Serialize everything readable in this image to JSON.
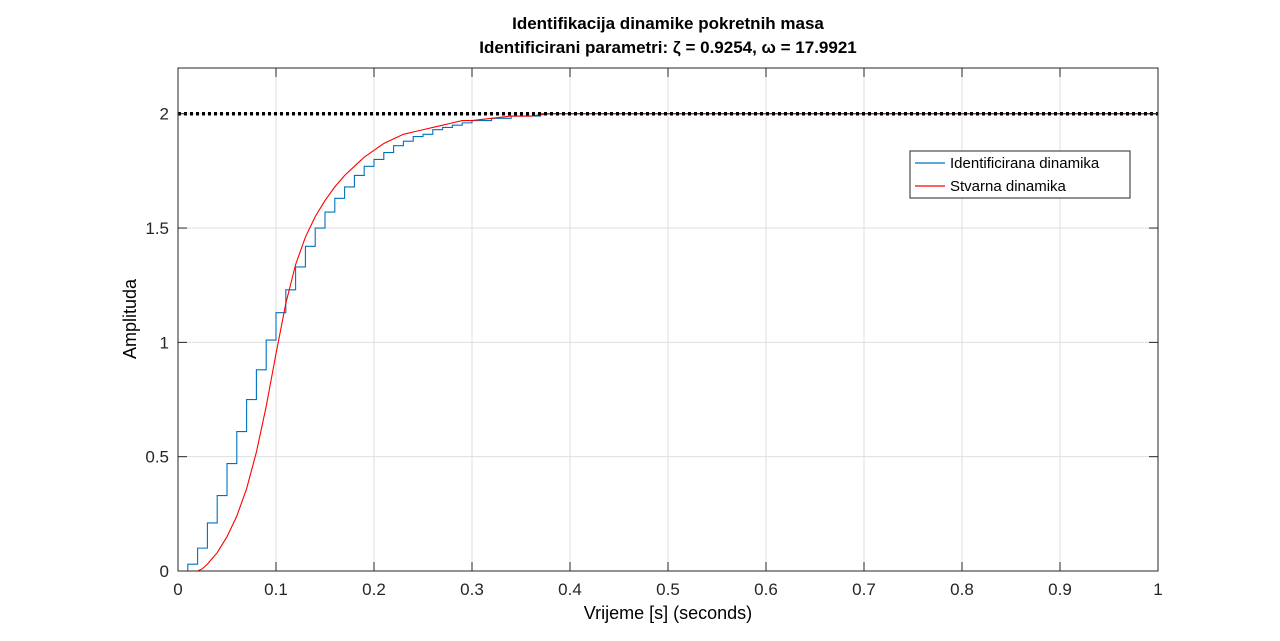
{
  "chart_data": {
    "type": "line",
    "title_line1": "Identifikacija dinamike pokretnih masa",
    "title_line2": "Identificirani parametri: ζ = 0.9254, ω = 17.9921",
    "xlabel": "Vrijeme [s] (seconds)",
    "ylabel": "Amplituda",
    "xlim": [
      0,
      1
    ],
    "ylim": [
      0,
      2.2
    ],
    "xticks": [
      "0",
      "0.1",
      "0.2",
      "0.3",
      "0.4",
      "0.5",
      "0.6",
      "0.7",
      "0.8",
      "0.9",
      "1"
    ],
    "yticks": [
      "0",
      "0.5",
      "1",
      "1.5",
      "2"
    ],
    "grid": true,
    "legend_position": "upper-right",
    "reference_line": {
      "y": 2,
      "style": "dotted",
      "color": "#000000"
    },
    "series": [
      {
        "name": "Identificirana dinamika",
        "style": "step",
        "color": "#0072BD",
        "x": [
          0,
          0.01,
          0.02,
          0.03,
          0.04,
          0.05,
          0.06,
          0.07,
          0.08,
          0.09,
          0.1,
          0.11,
          0.12,
          0.13,
          0.14,
          0.15,
          0.16,
          0.17,
          0.18,
          0.19,
          0.2,
          0.21,
          0.22,
          0.23,
          0.24,
          0.25,
          0.26,
          0.27,
          0.28,
          0.29,
          0.3,
          0.31,
          0.32,
          0.33,
          0.34,
          0.35,
          0.36,
          0.37,
          1.0
        ],
        "y": [
          0,
          0.03,
          0.1,
          0.21,
          0.33,
          0.47,
          0.61,
          0.75,
          0.88,
          1.01,
          1.13,
          1.23,
          1.33,
          1.42,
          1.5,
          1.57,
          1.63,
          1.68,
          1.73,
          1.77,
          1.8,
          1.83,
          1.86,
          1.88,
          1.9,
          1.91,
          1.93,
          1.94,
          1.95,
          1.96,
          1.97,
          1.97,
          1.98,
          1.98,
          1.99,
          1.99,
          1.99,
          2.0,
          2.0
        ]
      },
      {
        "name": "Stvarna dinamika",
        "style": "line",
        "color": "#FF0000",
        "x": [
          0,
          0.02,
          0.025,
          0.03,
          0.04,
          0.05,
          0.06,
          0.07,
          0.08,
          0.09,
          0.1,
          0.11,
          0.12,
          0.13,
          0.14,
          0.15,
          0.16,
          0.17,
          0.18,
          0.19,
          0.2,
          0.21,
          0.22,
          0.23,
          0.24,
          0.25,
          0.26,
          0.27,
          0.28,
          0.29,
          0.3,
          0.32,
          0.34,
          0.36,
          0.38,
          0.4,
          0.5,
          0.6,
          0.7,
          0.8,
          0.9,
          1.0
        ],
        "y": [
          0,
          0,
          0.01,
          0.03,
          0.08,
          0.15,
          0.24,
          0.36,
          0.52,
          0.72,
          0.95,
          1.17,
          1.34,
          1.46,
          1.55,
          1.62,
          1.68,
          1.73,
          1.77,
          1.81,
          1.84,
          1.87,
          1.89,
          1.91,
          1.92,
          1.93,
          1.94,
          1.95,
          1.96,
          1.97,
          1.97,
          1.98,
          1.99,
          1.99,
          2.0,
          2.0,
          2.0,
          2.0,
          2.0,
          2.0,
          2.0,
          2.0
        ]
      }
    ]
  }
}
